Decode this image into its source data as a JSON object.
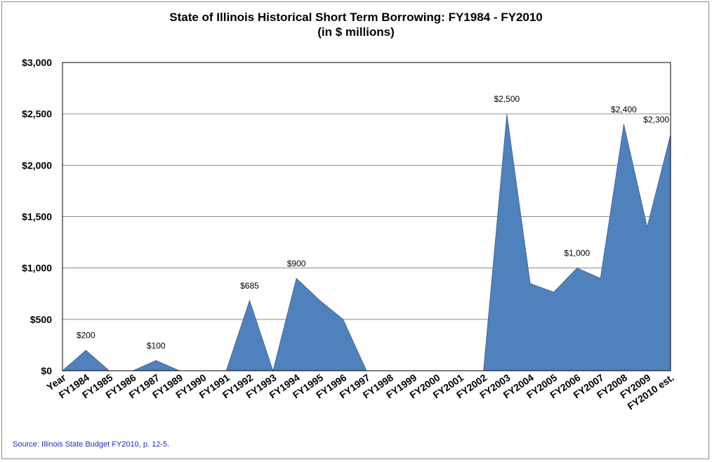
{
  "chart_data": {
    "type": "area",
    "title": "State of Illinois Historical Short Term Borrowing: FY1984 - FY2010",
    "subtitle": "(in $ millions)",
    "source": "Source: Illinois State Budget FY2010, p. 12-5.",
    "categories": [
      "Year",
      "FY1984",
      "FY1985",
      "FY1986",
      "FY1987",
      "FY1989",
      "FY1990",
      "FY1991",
      "FY1992",
      "FY1993",
      "FY1994",
      "FY1995",
      "FY1996",
      "FY1997",
      "FY1998",
      "FY1999",
      "FY2000",
      "FY2001",
      "FY2002",
      "FY2003",
      "FY2004",
      "FY2005",
      "FY2006",
      "FY2007",
      "FY2008",
      "FY2009",
      "FY2010 est."
    ],
    "values": [
      0,
      200,
      0,
      0,
      100,
      0,
      0,
      0,
      685,
      0,
      900,
      685,
      500,
      0,
      0,
      0,
      0,
      0,
      0,
      2500,
      850,
      765,
      1000,
      900,
      2400,
      1400,
      2300
    ],
    "data_labels": [
      {
        "index": 1,
        "text": "$200"
      },
      {
        "index": 4,
        "text": "$100"
      },
      {
        "index": 8,
        "text": "$685"
      },
      {
        "index": 10,
        "text": "$900"
      },
      {
        "index": 19,
        "text": "$2,500"
      },
      {
        "index": 22,
        "text": "$1,000"
      },
      {
        "index": 24,
        "text": "$2,400"
      },
      {
        "index": 26,
        "text": "$2,300"
      }
    ],
    "yticks": [
      "$0",
      "$500",
      "$1,000",
      "$1,500",
      "$2,000",
      "$2,500",
      "$3,000"
    ],
    "ylim": [
      0,
      3000
    ],
    "grid": true,
    "legend": "none",
    "fill_color": "#4f81bd"
  }
}
